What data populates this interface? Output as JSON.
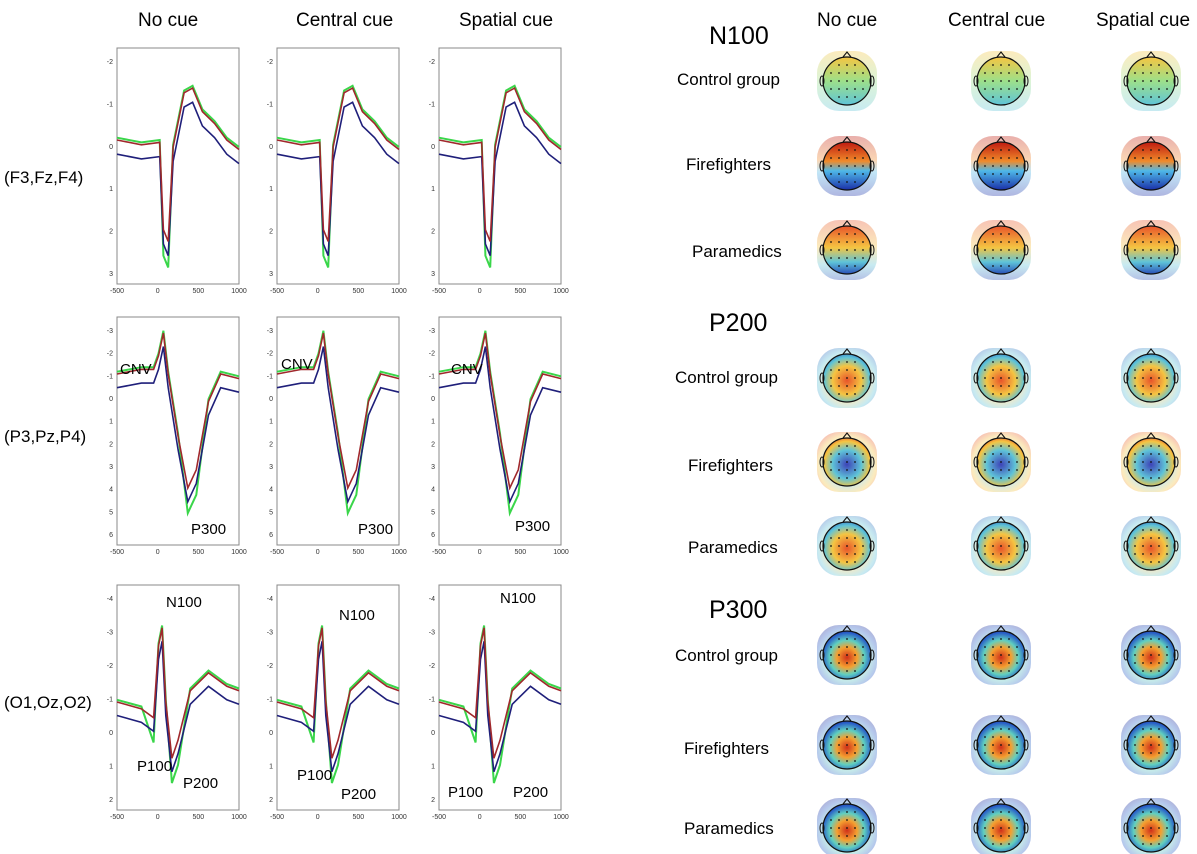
{
  "erp": {
    "columns": [
      "No cue",
      "Central cue",
      "Spatial cue"
    ],
    "rows": [
      {
        "label": "(F3,Fz,F4)"
      },
      {
        "label": "(P3,Pz,P4)"
      },
      {
        "label": "(O1,Oz,O2)"
      }
    ],
    "x_ticks": [
      "-500",
      "0",
      "500",
      "1000"
    ],
    "y_ticks": [
      [
        "-2",
        "-1",
        "0",
        "1",
        "2",
        "3"
      ],
      [
        "-3",
        "-2",
        "-1",
        "0",
        "1",
        "2",
        "3",
        "4",
        "5",
        "6"
      ],
      [
        "-4",
        "-3",
        "-2",
        "-1",
        "0",
        "1",
        "2"
      ]
    ],
    "peak_labels": {
      "cnv": "CNV",
      "p300": "P300",
      "n100": "N100",
      "p100": "P100",
      "p200": "P200"
    },
    "series_colors": {
      "control_group": "#1f1f7a",
      "firefighters": "#a0282c",
      "paramedics": "#3ad64a"
    }
  },
  "maps": {
    "columns": [
      "No cue",
      "Central cue",
      "Spatial cue"
    ],
    "sections": [
      {
        "title": "N100",
        "groups": [
          "Control group",
          "Firefighters",
          "Paramedics"
        ]
      },
      {
        "title": "P200",
        "groups": [
          "Control group",
          "Firefighters",
          "Paramedics"
        ]
      },
      {
        "title": "P300",
        "groups": [
          "Control group",
          "Firefighters",
          "Paramedics"
        ]
      }
    ]
  }
}
